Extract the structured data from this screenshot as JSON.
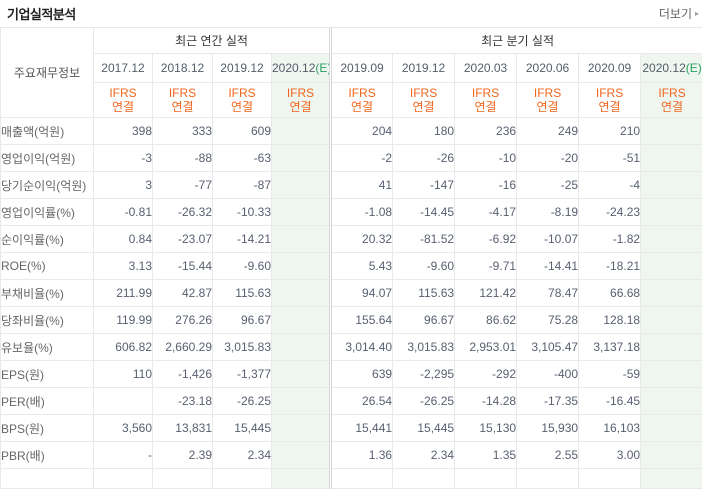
{
  "header": {
    "title": "기업실적분석",
    "more_label": "더보기",
    "more_arrow": "▸"
  },
  "colors": {
    "estimate_green": "#2aa05f",
    "estimate_bg": "#eff6ef",
    "negative_red": "#f53c3c",
    "positive_num": "#586070",
    "ifrs_orange": "#f0661d"
  },
  "table": {
    "corner_label": "주요재무정보",
    "groups": [
      {
        "label": "최근 연간 실적",
        "span": 4
      },
      {
        "label": "최근 분기 실적",
        "span": 6
      }
    ],
    "ifrs_label": {
      "line1": "IFRS",
      "line2": "연결"
    },
    "annual_columns": [
      {
        "label": "2017.12",
        "estimate": false,
        "suffix": ""
      },
      {
        "label": "2018.12",
        "estimate": false,
        "suffix": ""
      },
      {
        "label": "2019.12",
        "estimate": false,
        "suffix": ""
      },
      {
        "label": "2020.12",
        "estimate": true,
        "suffix": "(E)"
      }
    ],
    "quarter_columns": [
      {
        "label": "2019.09",
        "estimate": false,
        "suffix": ""
      },
      {
        "label": "2019.12",
        "estimate": false,
        "suffix": ""
      },
      {
        "label": "2020.03",
        "estimate": false,
        "suffix": ""
      },
      {
        "label": "2020.06",
        "estimate": false,
        "suffix": ""
      },
      {
        "label": "2020.09",
        "estimate": false,
        "suffix": ""
      },
      {
        "label": "2020.12",
        "estimate": true,
        "suffix": "(E)"
      }
    ],
    "rows": [
      {
        "label": "매출액(억원)",
        "annual": [
          "398",
          "333",
          "609",
          ""
        ],
        "quarter": [
          "204",
          "180",
          "236",
          "249",
          "210",
          ""
        ]
      },
      {
        "label": "영업이익(억원)",
        "annual": [
          "-3",
          "-88",
          "-63",
          ""
        ],
        "quarter": [
          "-2",
          "-26",
          "-10",
          "-20",
          "-51",
          ""
        ]
      },
      {
        "label": "당기순이익(억원)",
        "annual": [
          "3",
          "-77",
          "-87",
          ""
        ],
        "quarter": [
          "41",
          "-147",
          "-16",
          "-25",
          "-4",
          ""
        ]
      },
      {
        "label": "영업이익률(%)",
        "annual": [
          "-0.81",
          "-26.32",
          "-10.33",
          ""
        ],
        "quarter": [
          "-1.08",
          "-14.45",
          "-4.17",
          "-8.19",
          "-24.23",
          ""
        ]
      },
      {
        "label": "순이익률(%)",
        "annual": [
          "0.84",
          "-23.07",
          "-14.21",
          ""
        ],
        "quarter": [
          "20.32",
          "-81.52",
          "-6.92",
          "-10.07",
          "-1.82",
          ""
        ]
      },
      {
        "label": "ROE(%)",
        "annual": [
          "3.13",
          "-15.44",
          "-9.60",
          ""
        ],
        "quarter": [
          "5.43",
          "-9.60",
          "-9.71",
          "-14.41",
          "-18.21",
          ""
        ]
      },
      {
        "label": "부채비율(%)",
        "annual": [
          "211.99",
          "42.87",
          "115.63",
          ""
        ],
        "quarter": [
          "94.07",
          "115.63",
          "121.42",
          "78.47",
          "66.68",
          ""
        ]
      },
      {
        "label": "당좌비율(%)",
        "annual": [
          "119.99",
          "276.26",
          "96.67",
          ""
        ],
        "quarter": [
          "155.64",
          "96.67",
          "86.62",
          "75.28",
          "128.18",
          ""
        ]
      },
      {
        "label": "유보율(%)",
        "annual": [
          "606.82",
          "2,660.29",
          "3,015.83",
          ""
        ],
        "quarter": [
          "3,014.40",
          "3,015.83",
          "2,953.01",
          "3,105.47",
          "3,137.18",
          ""
        ]
      },
      {
        "label": "EPS(원)",
        "annual": [
          "110",
          "-1,426",
          "-1,377",
          ""
        ],
        "quarter": [
          "639",
          "-2,295",
          "-292",
          "-400",
          "-59",
          ""
        ]
      },
      {
        "label": "PER(배)",
        "annual": [
          "",
          "-23.18",
          "-26.25",
          ""
        ],
        "quarter": [
          "26.54",
          "-26.25",
          "-14.28",
          "-17.35",
          "-16.45",
          ""
        ]
      },
      {
        "label": "BPS(원)",
        "annual": [
          "3,560",
          "13,831",
          "15,445",
          ""
        ],
        "quarter": [
          "15,441",
          "15,445",
          "15,130",
          "15,930",
          "16,103",
          ""
        ]
      },
      {
        "label": "PBR(배)",
        "annual": [
          "-",
          "2.39",
          "2.34",
          ""
        ],
        "quarter": [
          "1.36",
          "2.34",
          "1.35",
          "2.55",
          "3.00",
          ""
        ]
      }
    ]
  }
}
